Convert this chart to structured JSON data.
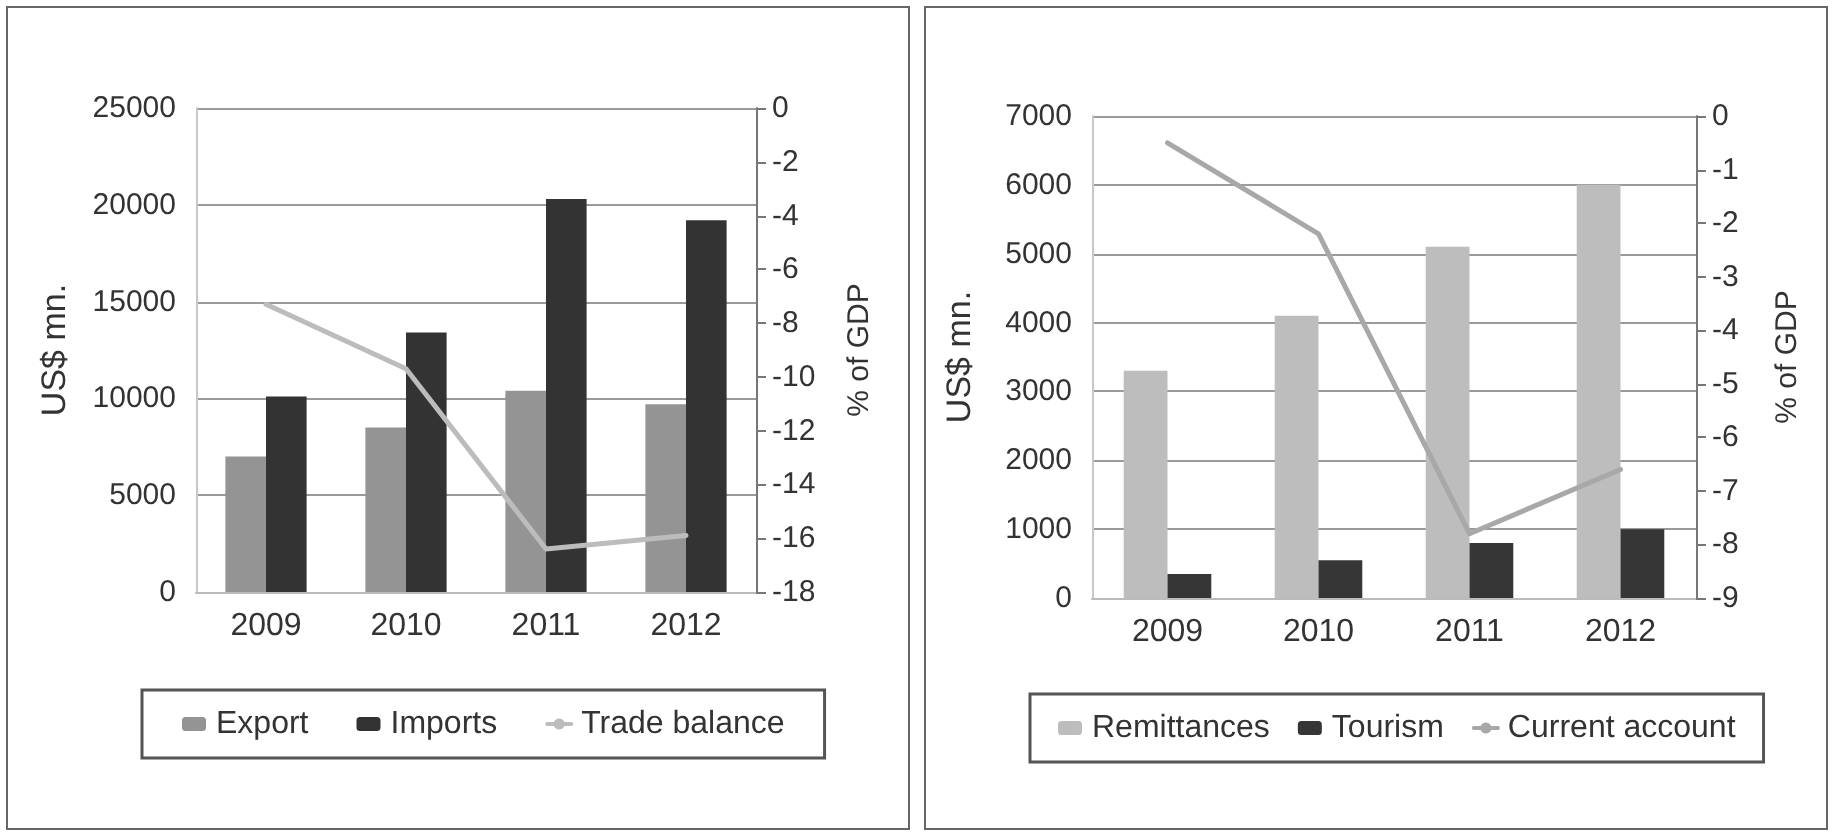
{
  "chart_data": [
    {
      "type": "bar",
      "categories": [
        "2009",
        "2010",
        "2011",
        "2012"
      ],
      "series": [
        {
          "name": "Export",
          "color": "#949494",
          "values": [
            7000,
            8500,
            10400,
            9700
          ]
        },
        {
          "name": "Imports",
          "color": "#333333",
          "values": [
            10100,
            13400,
            20300,
            19200
          ]
        },
        {
          "name": "Trade balance",
          "type": "line",
          "axis": "y2",
          "color": "#bcbcbc",
          "values": [
            -7.3,
            -9.7,
            -16.4,
            -15.9
          ]
        }
      ],
      "ylabel": "US$ mn.",
      "y2label": "% of GDP",
      "ylim": [
        0,
        25000
      ],
      "yticks": [
        0,
        5000,
        10000,
        15000,
        20000,
        25000
      ],
      "y2lim": [
        -18,
        0
      ],
      "y2ticks": [
        -18,
        -16,
        -14,
        -12,
        -10,
        -8,
        -6,
        -4,
        -2,
        0
      ],
      "grid": "y",
      "legend": "bottom",
      "marker": "none",
      "line_style": "solid"
    },
    {
      "type": "bar",
      "categories": [
        "2009",
        "2010",
        "2011",
        "2012"
      ],
      "series": [
        {
          "name": "Remittances",
          "color": "#bdbdbd",
          "values": [
            3300,
            4100,
            5100,
            6000
          ]
        },
        {
          "name": "Tourism",
          "color": "#363636",
          "values": [
            350,
            550,
            800,
            1000
          ]
        },
        {
          "name": "Current account",
          "type": "line",
          "axis": "y2",
          "color": "#a8a8a8",
          "values": [
            -0.5,
            -2.2,
            -7.8,
            -6.6
          ]
        }
      ],
      "ylabel": "US$ mn.",
      "y2label": "% of GDP",
      "ylim": [
        0,
        7000
      ],
      "yticks": [
        0,
        1000,
        2000,
        3000,
        4000,
        5000,
        6000,
        7000
      ],
      "y2lim": [
        -9,
        0
      ],
      "y2ticks": [
        -9,
        -8,
        -7,
        -6,
        -5,
        -4,
        -3,
        -2,
        -1,
        0
      ],
      "grid": "y",
      "legend": "bottom",
      "marker": "none",
      "line_style": "solid"
    }
  ]
}
